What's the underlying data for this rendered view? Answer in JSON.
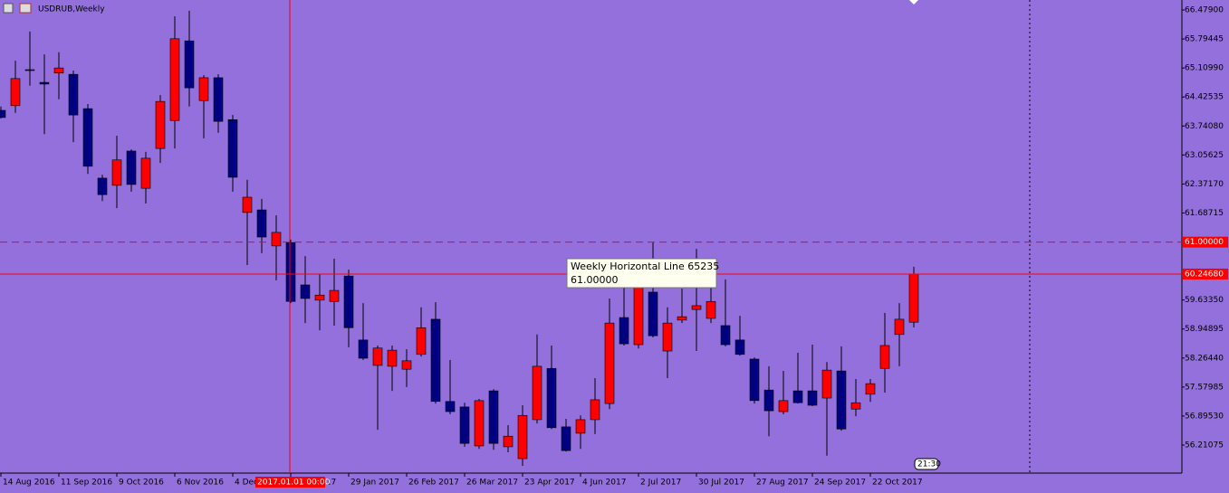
{
  "chart_data": {
    "type": "candlestick",
    "title": "USDRUB,Weekly",
    "categories": [
      "14 Aug 2016",
      null,
      null,
      null,
      "11 Sep 2016",
      null,
      null,
      null,
      "9 Oct 2016",
      null,
      null,
      null,
      "6 Nov 2016",
      null,
      null,
      null,
      "4 Dec 2016",
      null,
      null,
      null,
      "1 Jan 2017",
      null,
      null,
      null,
      "29 Jan 2017",
      null,
      null,
      null,
      "26 Feb 2017",
      null,
      null,
      null,
      "26 Mar 2017",
      null,
      null,
      null,
      "23 Apr 2017",
      null,
      null,
      null,
      "4 Jun 2017",
      null,
      null,
      null,
      "2 Jul 2017",
      null,
      null,
      null,
      "30 Jul 2017",
      null,
      null,
      null,
      "27 Aug 2017",
      null,
      null,
      null,
      "24 Sep 2017",
      null,
      null,
      null,
      "22 Oct 2017",
      null,
      null,
      null
    ],
    "open": [
      64.11,
      64.22,
      65.07,
      64.77,
      64.99,
      64.96,
      64.15,
      62.51,
      62.34,
      63.15,
      62.27,
      63.21,
      63.87,
      65.75,
      64.34,
      64.88,
      63.89,
      61.7,
      61.76,
      60.91,
      60.99,
      59.99,
      59.63,
      59.6,
      60.2,
      58.69,
      58.09,
      58.07,
      58.0,
      58.35,
      59.18,
      57.24,
      57.11,
      56.19,
      57.49,
      56.17,
      55.89,
      56.81,
      58.02,
      56.64,
      56.49,
      56.81,
      57.19,
      59.22,
      58.58,
      59.82,
      58.43,
      59.16,
      59.41,
      59.2,
      59.03,
      58.69,
      58.24,
      57.51,
      57.0,
      57.49,
      57.49,
      57.32,
      57.96,
      57.06,
      57.41,
      58.02,
      58.82,
      59.11
    ],
    "high": [
      64.2,
      65.28,
      65.97,
      65.43,
      65.48,
      65.05,
      64.26,
      62.59,
      63.51,
      63.19,
      63.13,
      64.47,
      66.33,
      66.46,
      64.94,
      64.96,
      64.0,
      62.47,
      62.02,
      61.63,
      61.06,
      60.67,
      60.25,
      60.61,
      60.35,
      59.56,
      58.56,
      58.56,
      58.47,
      59.46,
      59.58,
      58.22,
      57.21,
      57.3,
      57.53,
      56.68,
      57.15,
      58.82,
      58.56,
      56.83,
      56.91,
      57.79,
      59.67,
      59.92,
      60.31,
      60.99,
      59.46,
      59.9,
      60.84,
      60.22,
      60.12,
      59.26,
      58.28,
      58.07,
      57.96,
      58.39,
      58.58,
      58.17,
      58.54,
      57.77,
      57.77,
      59.33,
      59.56,
      60.42
    ],
    "low": [
      63.92,
      64.05,
      64.69,
      63.55,
      64.37,
      63.36,
      62.61,
      61.97,
      61.8,
      62.19,
      61.91,
      62.87,
      63.21,
      64.2,
      63.45,
      63.58,
      62.19,
      60.46,
      60.74,
      60.1,
      59.56,
      59.09,
      58.92,
      59.03,
      58.52,
      58.22,
      56.57,
      57.49,
      57.58,
      58.3,
      57.19,
      56.94,
      56.17,
      56.12,
      56.1,
      56.04,
      55.72,
      56.72,
      56.59,
      56.06,
      56.12,
      56.47,
      57.06,
      58.56,
      58.49,
      58.75,
      57.79,
      59.09,
      58.43,
      59.09,
      58.54,
      58.32,
      57.19,
      56.42,
      56.94,
      57.19,
      57.13,
      55.96,
      56.55,
      56.89,
      57.23,
      57.45,
      58.07,
      58.99
    ],
    "close": [
      63.94,
      64.86,
      65.05,
      64.73,
      65.11,
      64.0,
      62.79,
      62.12,
      62.94,
      62.36,
      62.98,
      64.32,
      65.8,
      64.64,
      64.88,
      63.85,
      62.53,
      62.06,
      61.12,
      61.23,
      59.6,
      59.67,
      59.75,
      59.86,
      58.98,
      58.26,
      58.5,
      58.45,
      58.2,
      58.98,
      57.24,
      57.0,
      56.25,
      57.26,
      56.25,
      56.42,
      56.91,
      58.07,
      56.62,
      56.08,
      56.81,
      57.28,
      59.09,
      58.6,
      59.95,
      58.79,
      59.09,
      59.24,
      59.5,
      59.6,
      58.58,
      58.35,
      57.26,
      57.02,
      57.26,
      57.21,
      57.15,
      57.98,
      56.59,
      57.21,
      57.66,
      58.56,
      59.18,
      60.2468
    ],
    "up_color": "#ff0000",
    "down_color": "#000080",
    "wick_color": "#000000",
    "ylim": [
      55.549,
      66.714
    ],
    "yticks": [
      {
        "value": 66.479,
        "label": "66.47900"
      },
      {
        "value": 65.79445,
        "label": "65.79445"
      },
      {
        "value": 65.1099,
        "label": "65.10990"
      },
      {
        "value": 64.42535,
        "label": "64.42535"
      },
      {
        "value": 63.7408,
        "label": "63.74080"
      },
      {
        "value": 63.05625,
        "label": "63.05625"
      },
      {
        "value": 62.3717,
        "label": "62.37170"
      },
      {
        "value": 61.68715,
        "label": "61.68715"
      },
      {
        "value": 59.6335,
        "label": "59.63350"
      },
      {
        "value": 58.94895,
        "label": "58.94895"
      },
      {
        "value": 58.2644,
        "label": "58.26440"
      },
      {
        "value": 57.57985,
        "label": "57.57985"
      },
      {
        "value": 56.8953,
        "label": "56.89530"
      },
      {
        "value": 56.21075,
        "label": "56.21075"
      }
    ],
    "hline": {
      "name": "Weekly Horizontal Line 65235",
      "value": 61.0,
      "label": "61.00000",
      "color": "#ff0000"
    },
    "bid": {
      "value": 60.2468,
      "label": "60.24680",
      "color": "#ff0000"
    },
    "crosshair_label": "2017.01.01 00:00",
    "timer_label": "21:30",
    "grid": false
  }
}
